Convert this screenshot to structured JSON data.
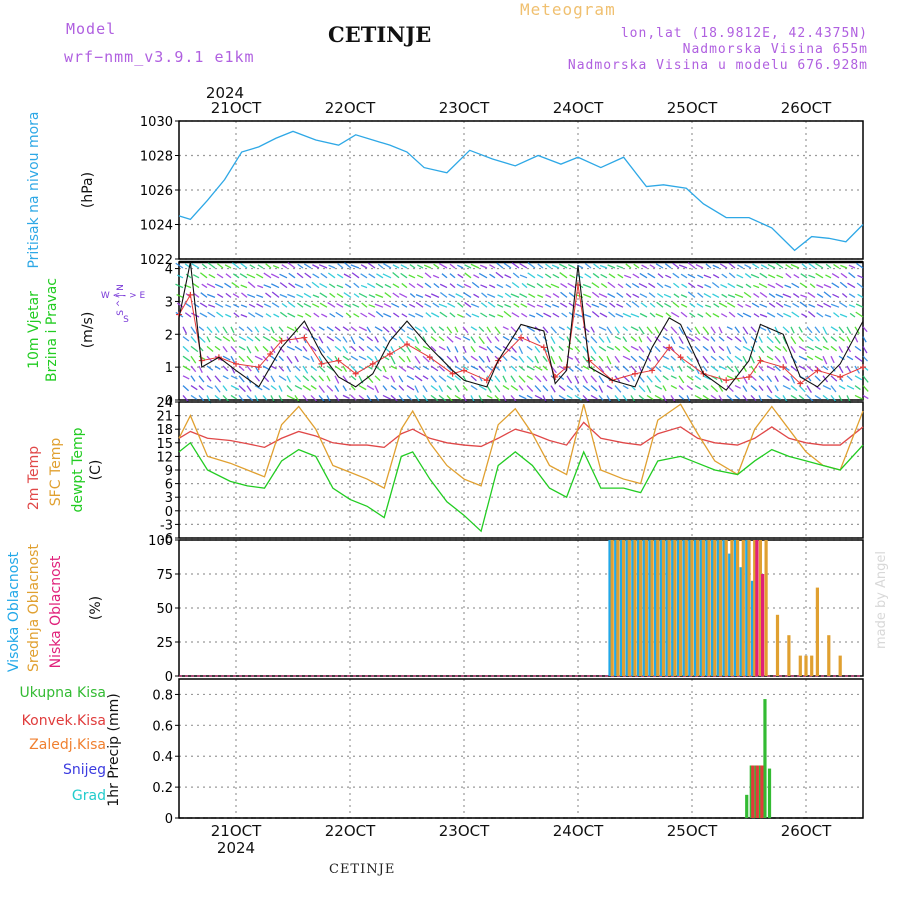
{
  "header": {
    "model_label": "Model",
    "model_name": "wrf−nmm_v3.9.1  e1km",
    "station": "CETINJE",
    "meteogram_label": "Meteogram",
    "lonlat": "lon,lat (18.9812E, 42.4375N)",
    "altitude": "Nadmorska Visina 655m",
    "model_altitude": "Nadmorska Visina u modelu 676.928m",
    "watermark": "made by Angel",
    "footer_station": "CETINJE"
  },
  "colors": {
    "pressure": "#2ea8e6",
    "wind_speed": "#111111",
    "gust": "#e53a3a",
    "t2m": "#e04848",
    "sfc": "#e0a030",
    "dewpt": "#22cc22",
    "high_cloud": "#22a8e8",
    "mid_cloud": "#e0a030",
    "low_cloud": "#e0207a",
    "total_precip": "#33bb33",
    "conv_precip": "#e03c3c",
    "ice": "#f08030",
    "snow": "#3c3ce0",
    "hail": "#22cccc",
    "wind_label": "#7a3ad8"
  },
  "chart_data": [
    {
      "type": "line",
      "id": "pressure",
      "ylabel": "Pritisak na nivou mora",
      "unit": "(hPa)",
      "ylim": [
        1022,
        1030
      ],
      "yticks": [
        1022,
        1024,
        1026,
        1028,
        1030
      ],
      "x_top_year": "2024",
      "x_top_ticks": [
        "21OCT",
        "22OCT",
        "23OCT",
        "24OCT",
        "25OCT",
        "26OCT"
      ],
      "grid": true,
      "x": [
        20.5,
        20.6,
        20.75,
        20.9,
        21.05,
        21.2,
        21.35,
        21.5,
        21.7,
        21.9,
        22.05,
        22.2,
        22.35,
        22.5,
        22.65,
        22.85,
        23.05,
        23.25,
        23.45,
        23.65,
        23.85,
        24.0,
        24.2,
        24.4,
        24.6,
        24.75,
        24.95,
        25.1,
        25.3,
        25.5,
        25.7,
        25.9,
        26.05,
        26.2,
        26.35,
        26.5
      ],
      "series": [
        {
          "values": [
            1024.5,
            1024.3,
            1025.4,
            1026.6,
            1028.2,
            1028.5,
            1029.0,
            1029.4,
            1028.9,
            1028.6,
            1029.2,
            1028.9,
            1028.6,
            1028.2,
            1027.3,
            1027.0,
            1028.3,
            1027.8,
            1027.4,
            1028.0,
            1027.5,
            1027.9,
            1027.3,
            1027.9,
            1026.2,
            1026.3,
            1026.1,
            1025.2,
            1024.4,
            1024.4,
            1023.8,
            1022.5,
            1023.3,
            1023.2,
            1023.0,
            1024.0
          ]
        }
      ]
    },
    {
      "type": "line",
      "id": "wind",
      "ylabel": "10m Vjetar Brzina i Pravac",
      "unit": "(m/s)",
      "compass": [
        "S",
        "^",
        "|",
        "N",
        "W",
        "<",
        "-",
        ">",
        "E"
      ],
      "ylim": [
        0,
        4.2
      ],
      "yticks": [
        0,
        1,
        2,
        3,
        4
      ],
      "grid": true,
      "x": [
        20.5,
        20.6,
        20.7,
        20.85,
        21.0,
        21.2,
        21.3,
        21.4,
        21.6,
        21.75,
        21.9,
        22.05,
        22.2,
        22.35,
        22.5,
        22.7,
        22.9,
        23.0,
        23.2,
        23.3,
        23.5,
        23.7,
        23.8,
        23.9,
        24.0,
        24.1,
        24.3,
        24.5,
        24.65,
        24.8,
        24.9,
        25.1,
        25.3,
        25.5,
        25.6,
        25.8,
        25.95,
        26.1,
        26.3,
        26.5
      ],
      "series": [
        {
          "name": "speed",
          "values": [
            2.5,
            4.2,
            1.0,
            1.3,
            0.9,
            0.4,
            1.0,
            1.6,
            2.4,
            1.4,
            0.7,
            0.4,
            0.8,
            1.8,
            2.4,
            1.6,
            0.9,
            0.6,
            0.4,
            1.2,
            2.3,
            2.1,
            0.5,
            0.9,
            4.1,
            1.0,
            0.6,
            0.4,
            1.6,
            2.5,
            2.3,
            0.8,
            0.3,
            1.2,
            2.3,
            2.0,
            0.7,
            0.4,
            1.1,
            2.4
          ]
        },
        {
          "name": "gust",
          "values": [
            2.6,
            3.2,
            1.2,
            1.3,
            1.1,
            1.0,
            1.4,
            1.8,
            1.9,
            1.1,
            1.2,
            0.8,
            1.1,
            1.4,
            1.7,
            1.3,
            0.8,
            0.9,
            0.6,
            1.2,
            1.9,
            1.6,
            0.7,
            1.0,
            3.5,
            1.2,
            0.6,
            0.8,
            0.9,
            1.6,
            1.3,
            0.8,
            0.6,
            0.7,
            1.2,
            1.0,
            0.5,
            0.9,
            0.7,
            1.0
          ]
        }
      ]
    },
    {
      "type": "line",
      "id": "temperature",
      "ylabel": [
        "2m Temp",
        "SFC Temp",
        "dewpt Temp"
      ],
      "unit": "(C)",
      "ylim": [
        -6,
        24
      ],
      "yticks": [
        -6,
        -3,
        0,
        3,
        6,
        9,
        12,
        15,
        18,
        21,
        24
      ],
      "grid": true,
      "x": [
        20.5,
        20.6,
        20.75,
        20.95,
        21.1,
        21.25,
        21.4,
        21.55,
        21.7,
        21.85,
        22.0,
        22.15,
        22.3,
        22.45,
        22.55,
        22.7,
        22.85,
        23.0,
        23.15,
        23.3,
        23.45,
        23.6,
        23.75,
        23.9,
        24.05,
        24.2,
        24.4,
        24.55,
        24.7,
        24.9,
        25.05,
        25.2,
        25.4,
        25.55,
        25.7,
        25.85,
        26.0,
        26.15,
        26.3,
        26.5
      ],
      "series": [
        {
          "name": "2m Temp",
          "values": [
            16.0,
            17.5,
            16.0,
            15.5,
            14.8,
            14.0,
            16.0,
            17.5,
            16.5,
            15.0,
            14.5,
            14.5,
            14.0,
            17.0,
            18.0,
            16.0,
            15.0,
            14.5,
            14.2,
            16.0,
            18.0,
            17.0,
            15.5,
            14.5,
            19.5,
            16.0,
            15.0,
            14.5,
            17.0,
            18.5,
            16.0,
            15.0,
            14.5,
            16.0,
            18.5,
            16.0,
            15.0,
            14.5,
            14.5,
            18.5
          ]
        },
        {
          "name": "SFC Temp",
          "values": [
            16.0,
            21.0,
            12.0,
            10.5,
            9.0,
            7.5,
            19.0,
            23.0,
            18.0,
            10.0,
            8.5,
            7.0,
            5.0,
            18.0,
            22.0,
            15.0,
            10.0,
            7.0,
            5.5,
            19.0,
            22.5,
            17.0,
            10.0,
            8.0,
            23.5,
            9.0,
            7.0,
            6.0,
            20.0,
            23.5,
            17.0,
            11.0,
            8.0,
            18.0,
            23.0,
            18.0,
            13.0,
            10.0,
            9.0,
            22.0
          ]
        },
        {
          "name": "dewpt Temp",
          "values": [
            13.0,
            15.0,
            9.0,
            6.5,
            5.5,
            5.0,
            11.0,
            13.5,
            12.0,
            5.0,
            2.5,
            1.0,
            -1.5,
            12.0,
            13.0,
            7.0,
            2.0,
            -1.0,
            -4.5,
            10.0,
            13.0,
            10.0,
            5.0,
            3.0,
            13.0,
            5.0,
            5.0,
            4.0,
            11.0,
            12.0,
            10.5,
            9.0,
            8.0,
            11.0,
            13.5,
            12.0,
            11.0,
            10.0,
            9.0,
            14.5
          ]
        }
      ]
    },
    {
      "type": "bar",
      "id": "clouds",
      "ylabel": [
        "Visoka Oblacnost",
        "Srednja Oblacnost",
        "Niska Oblacnost"
      ],
      "unit": "(%)",
      "ylim": [
        0,
        100
      ],
      "yticks": [
        0,
        25,
        50,
        75,
        100
      ],
      "grid": true,
      "x": [
        24.3,
        24.35,
        24.4,
        24.45,
        24.5,
        24.55,
        24.6,
        24.65,
        24.7,
        24.75,
        24.8,
        24.85,
        24.9,
        24.95,
        25.0,
        25.05,
        25.1,
        25.15,
        25.2,
        25.25,
        25.3,
        25.35,
        25.4,
        25.45,
        25.5,
        25.55,
        25.6,
        25.65,
        25.75,
        25.85,
        25.95,
        26.0,
        26.05,
        26.1,
        26.2,
        26.3,
        26.4
      ],
      "series": [
        {
          "name": "Visoka Oblacnost",
          "values": [
            100,
            100,
            100,
            100,
            100,
            100,
            100,
            100,
            100,
            100,
            100,
            100,
            100,
            100,
            100,
            100,
            100,
            100,
            100,
            100,
            100,
            90,
            100,
            80,
            100,
            70,
            0,
            0,
            0,
            0,
            0,
            0,
            0,
            0,
            0,
            0,
            0
          ]
        },
        {
          "name": "Srednja Oblacnost",
          "values": [
            100,
            100,
            100,
            100,
            100,
            100,
            100,
            100,
            100,
            100,
            100,
            100,
            100,
            100,
            100,
            100,
            100,
            100,
            100,
            100,
            100,
            100,
            100,
            100,
            100,
            100,
            100,
            100,
            45,
            30,
            15,
            15,
            15,
            65,
            30,
            15,
            0
          ]
        },
        {
          "name": "Niska Oblacnost",
          "values": [
            0,
            0,
            0,
            0,
            0,
            0,
            0,
            0,
            0,
            0,
            0,
            0,
            0,
            0,
            0,
            0,
            0,
            0,
            0,
            0,
            0,
            0,
            0,
            0,
            0,
            100,
            75,
            0,
            0,
            0,
            0,
            0,
            0,
            0,
            0,
            0,
            0
          ]
        }
      ]
    },
    {
      "type": "bar",
      "id": "precip",
      "ylabel": [
        "Ukupna Kisa",
        "Konvek.Kisa",
        "Zaledj.Kisa",
        "Snijeg",
        "Grad"
      ],
      "unit": "1hr Precip (mm)",
      "ylim": [
        0,
        0.9
      ],
      "yticks": [
        0,
        0.2,
        0.4,
        0.6,
        0.8
      ],
      "x_bottom_ticks": [
        "21OCT",
        "22OCT",
        "23OCT",
        "24OCT",
        "25OCT",
        "26OCT"
      ],
      "x_bottom_year": "2024",
      "grid": true,
      "x": [
        25.48,
        25.52,
        25.56,
        25.6,
        25.64,
        25.68,
        25.72
      ],
      "series": [
        {
          "name": "Ukupna Kisa",
          "values": [
            0.15,
            0.34,
            0.34,
            0.34,
            0.77,
            0.32,
            0
          ]
        },
        {
          "name": "Konvek.Kisa",
          "values": [
            0,
            0.34,
            0.34,
            0.34,
            0,
            0,
            0
          ]
        }
      ]
    }
  ]
}
